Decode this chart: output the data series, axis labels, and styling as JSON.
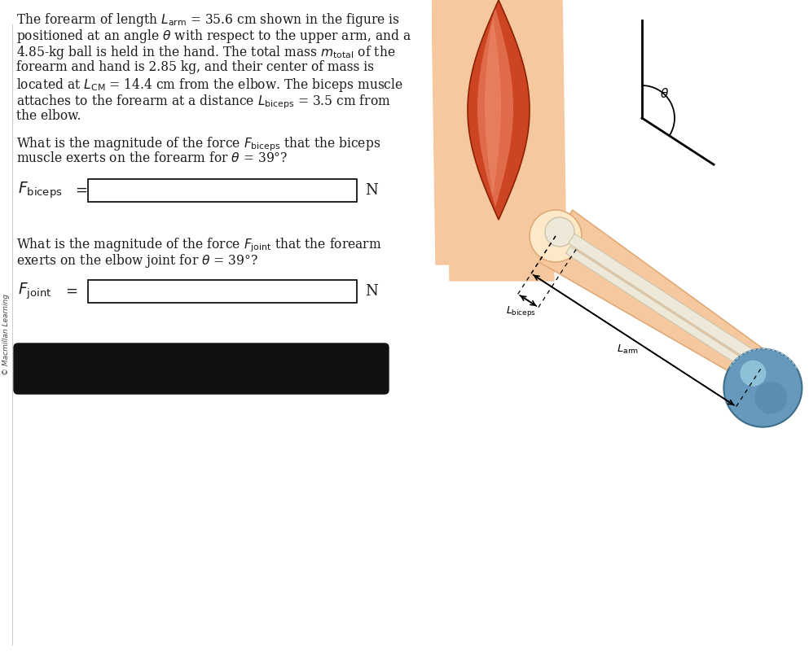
{
  "bg_color": "#ffffff",
  "sidebar_text": "© Macmillan Learning",
  "text_color": "#1a1a1a",
  "box_color": "#000000",
  "input_box_color": "#ffffff",
  "font_size_body": 11.2,
  "sidebar_color": "#444444",
  "skin_color": "#f5c8a0",
  "skin_dark": "#e0aa78",
  "skin_light": "#fde8c8",
  "muscle_red": "#cc4422",
  "muscle_light": "#e8795a",
  "muscle_mid": "#d45e3a",
  "bone_color": "#ede8d8",
  "bone_outline": "#ccc4aa",
  "ball_color": "#6699bb",
  "ball_light": "#99cce0",
  "ball_dark": "#3d6e8a",
  "black_bar_color": "#111111",
  "lines_p1": [
    "The forearm of length $L_{\\rm arm}$ = 35.6 cm shown in the figure is",
    "positioned at an angle $\\theta$ with respect to the upper arm, and a",
    "4.85-kg ball is held in the hand. The total mass $m_{\\rm total}$ of the",
    "forearm and hand is 2.85 kg, and their center of mass is",
    "located at $L_{\\rm CM}$ = 14.4 cm from the elbow. The biceps muscle",
    "attaches to the forearm at a distance $L_{\\rm biceps}$ = 3.5 cm from",
    "the elbow."
  ],
  "lines_p2": [
    "What is the magnitude of the force $F_{\\rm biceps}$ that the biceps",
    "muscle exerts on the forearm for $\\theta$ = 39°?"
  ],
  "lines_p3": [
    "What is the magnitude of the force $F_{\\rm joint}$ that the forearm",
    "exerts on the elbow joint for $\\theta$ = 39°?"
  ],
  "label_fbiceps": "$F_{\\rm biceps}$",
  "label_fjoint": "$F_{\\rm joint}$",
  "unit_N": "N"
}
